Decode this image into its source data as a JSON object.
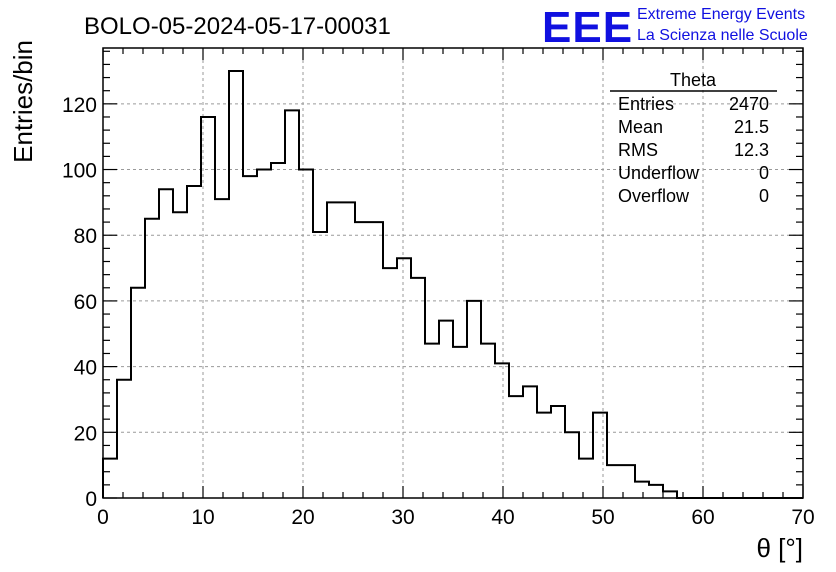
{
  "chart_data": {
    "type": "histogram",
    "title": "BOLO-05-2024-05-17-00031",
    "xlabel": "θ [°]",
    "ylabel": "Entries/bin",
    "xlim": [
      0,
      70
    ],
    "ylim": [
      0,
      137
    ],
    "bin_width": 1.4,
    "x_ticks": [
      0,
      10,
      20,
      30,
      40,
      50,
      60,
      70
    ],
    "y_ticks": [
      0,
      20,
      40,
      60,
      80,
      100,
      120
    ],
    "grid": true,
    "values": [
      12,
      36,
      64,
      85,
      94,
      87,
      95,
      116,
      91,
      130,
      98,
      100,
      102,
      118,
      100,
      81,
      90,
      90,
      84,
      84,
      70,
      73,
      67,
      47,
      54,
      46,
      60,
      47,
      41,
      31,
      34,
      26,
      28,
      20,
      12,
      26,
      10,
      10,
      5,
      4,
      2,
      0,
      0,
      0,
      0,
      0,
      0,
      0,
      0,
      0
    ],
    "stats": {
      "name": "Theta",
      "rows": [
        {
          "label": "Entries",
          "value": "2470"
        },
        {
          "label": "Mean",
          "value": "21.5"
        },
        {
          "label": "RMS",
          "value": "12.3"
        },
        {
          "label": "Underflow",
          "value": "0"
        },
        {
          "label": "Overflow",
          "value": "0"
        }
      ]
    }
  },
  "logo": {
    "text": "EEE",
    "line1": "Extreme Energy Events",
    "line2": "La Scienza nelle Scuole",
    "color": "#1010e0"
  }
}
